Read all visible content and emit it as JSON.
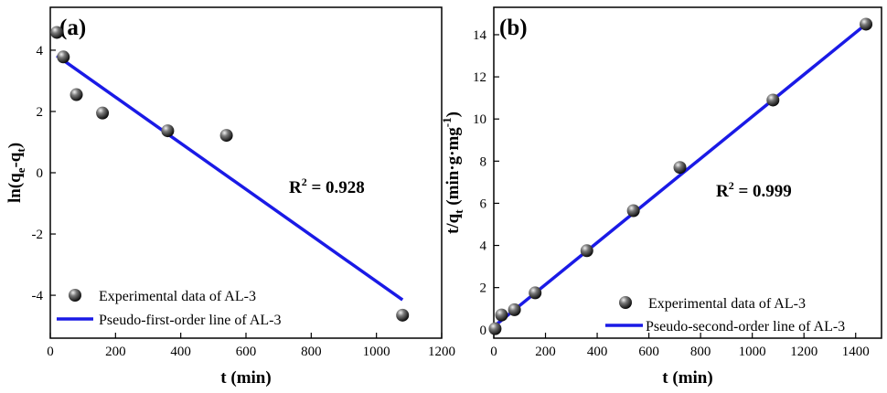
{
  "chart_data": [
    {
      "type": "scatter",
      "panel_label": "(a)",
      "xlabel": "t (min)",
      "ylabel": "ln(q_e-q_t)",
      "ylabel_parts": {
        "pre": "ln(q",
        "sub1": "e",
        "mid": "-q",
        "sub2": "t",
        "post": ")"
      },
      "xlim": [
        0,
        1200
      ],
      "ylim": [
        -5.4,
        5.4
      ],
      "xticks": [
        0,
        200,
        400,
        600,
        800,
        1000,
        1200
      ],
      "yticks": [
        -4,
        -2,
        0,
        2,
        4
      ],
      "r2": {
        "prefix": "R",
        "sup": "2",
        "suffix": " = 0.928"
      },
      "series": [
        {
          "name": "Experimental data of AL-3",
          "kind": "points",
          "x": [
            20,
            40,
            80,
            160,
            360,
            540,
            1080
          ],
          "y": [
            4.58,
            3.78,
            2.55,
            1.95,
            1.37,
            1.22,
            -4.65
          ]
        },
        {
          "name": "Pseudo-first-order line of AL-3",
          "kind": "line",
          "color": "#1a1ae6",
          "x": [
            20,
            1080
          ],
          "y": [
            3.82,
            -4.15
          ]
        }
      ],
      "legend": {
        "position": "bottom-left",
        "points_label": "Experimental data of AL-3",
        "line_label": "Pseudo-first-order line of AL-3"
      }
    },
    {
      "type": "scatter",
      "panel_label": "(b)",
      "xlabel": "t (min)",
      "ylabel": "t/q_t (min·g·mg^-1)",
      "ylabel_parts": {
        "pre": "t/q",
        "sub1": "t",
        "post": " (min·g·mg",
        "sup": "-1",
        "end": ")"
      },
      "xlim": [
        0,
        1500
      ],
      "ylim": [
        -0.4,
        15.3
      ],
      "xticks": [
        0,
        200,
        400,
        600,
        800,
        1000,
        1200,
        1400
      ],
      "yticks": [
        0,
        2,
        4,
        6,
        8,
        10,
        12,
        14
      ],
      "r2": {
        "prefix": "R",
        "sup": "2",
        "suffix": " = 0.999"
      },
      "series": [
        {
          "name": "Experimental data of AL-3",
          "kind": "points",
          "x": [
            5,
            30,
            80,
            160,
            360,
            540,
            720,
            1080,
            1440
          ],
          "y": [
            0.05,
            0.7,
            0.95,
            1.75,
            3.75,
            5.65,
            7.7,
            10.9,
            14.5
          ]
        },
        {
          "name": "Pseudo-second-order line of AL-3",
          "kind": "line",
          "color": "#1a1ae6",
          "x": [
            0,
            1440
          ],
          "y": [
            0.15,
            14.5
          ]
        }
      ],
      "legend": {
        "position": "bottom-right",
        "points_label": "Experimental data of AL-3",
        "line_label": "Pseudo-second-order line of AL-3"
      }
    }
  ],
  "colors": {
    "line": "#1a1ae6",
    "marker_dark": "#000000",
    "marker_light": "#d0d0d0"
  }
}
